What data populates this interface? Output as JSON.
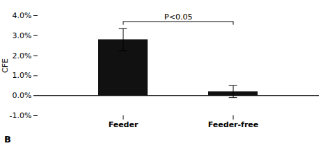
{
  "chart_data": {
    "type": "bar",
    "categories": [
      "Feeder",
      "Feeder-free"
    ],
    "values": [
      0.028,
      0.002
    ],
    "errors": [
      0.0055,
      0.003
    ],
    "color": "#111111",
    "ylabel": "CFE",
    "ylim": [
      -0.01,
      0.04
    ],
    "yticks": [
      {
        "value": -0.01,
        "label": "-1.0%"
      },
      {
        "value": 0.0,
        "label": "0.0%"
      },
      {
        "value": 0.01,
        "label": "1.0%"
      },
      {
        "value": 0.02,
        "label": "2.0%"
      },
      {
        "value": 0.03,
        "label": "3.0%"
      },
      {
        "value": 0.04,
        "label": "4.0%"
      }
    ],
    "grid": false,
    "annotations": [
      {
        "text": "P<0.05",
        "x": [
          "Feeder",
          "Feeder-free"
        ],
        "y": 0.037
      }
    ],
    "panel_label": "B"
  }
}
